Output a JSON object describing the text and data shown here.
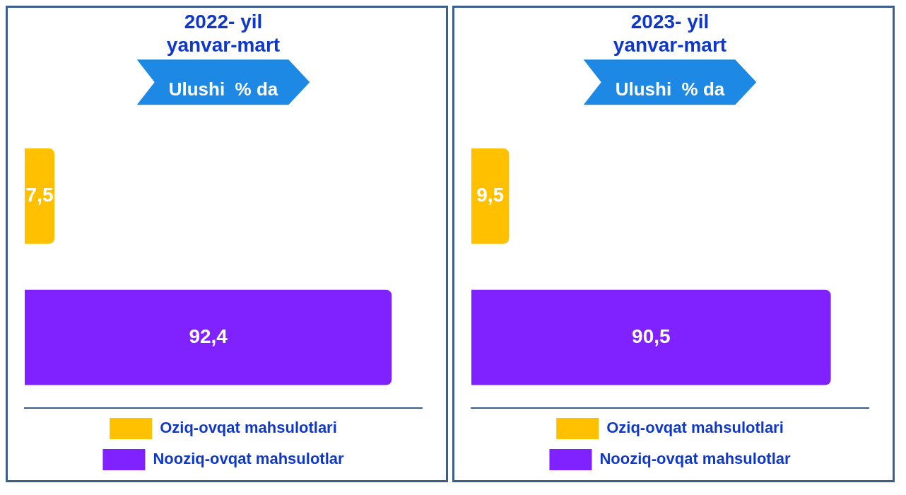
{
  "chart_data": [
    {
      "type": "bar",
      "title": "2022- yil\nyanvar-mart",
      "subtitle": "Ulushi  % da",
      "orientation": "horizontal",
      "stacked": true,
      "categories": [
        null,
        null
      ],
      "xlim": [
        0,
        100
      ],
      "tick_labels": false,
      "legend": "bottom",
      "series": [
        {
          "name": "Oziq-ovqat mahsulotlari",
          "color": "#ffc000",
          "values": [
            7.5,
            null
          ],
          "value_labels": [
            "7,5",
            null
          ]
        },
        {
          "name": "Nooziq-ovqat mahsulotlar",
          "color": "#8021ff",
          "values": [
            null,
            92.4
          ],
          "value_labels": [
            null,
            "92,4"
          ]
        }
      ]
    },
    {
      "type": "bar",
      "title": "2023- yil\nyanvar-mart",
      "subtitle": "Ulushi  % da",
      "orientation": "horizontal",
      "stacked": true,
      "categories": [
        null,
        null
      ],
      "xlim": [
        0,
        100
      ],
      "tick_labels": false,
      "legend": "bottom",
      "series": [
        {
          "name": "Oziq-ovqat mahsulotlari",
          "color": "#ffc000",
          "values": [
            9.5,
            null
          ],
          "value_labels": [
            "9,5",
            null
          ]
        },
        {
          "name": "Nooziq-ovqat mahsulotlar",
          "color": "#8021ff",
          "values": [
            null,
            90.5
          ],
          "value_labels": [
            null,
            "90,5"
          ]
        }
      ]
    }
  ]
}
